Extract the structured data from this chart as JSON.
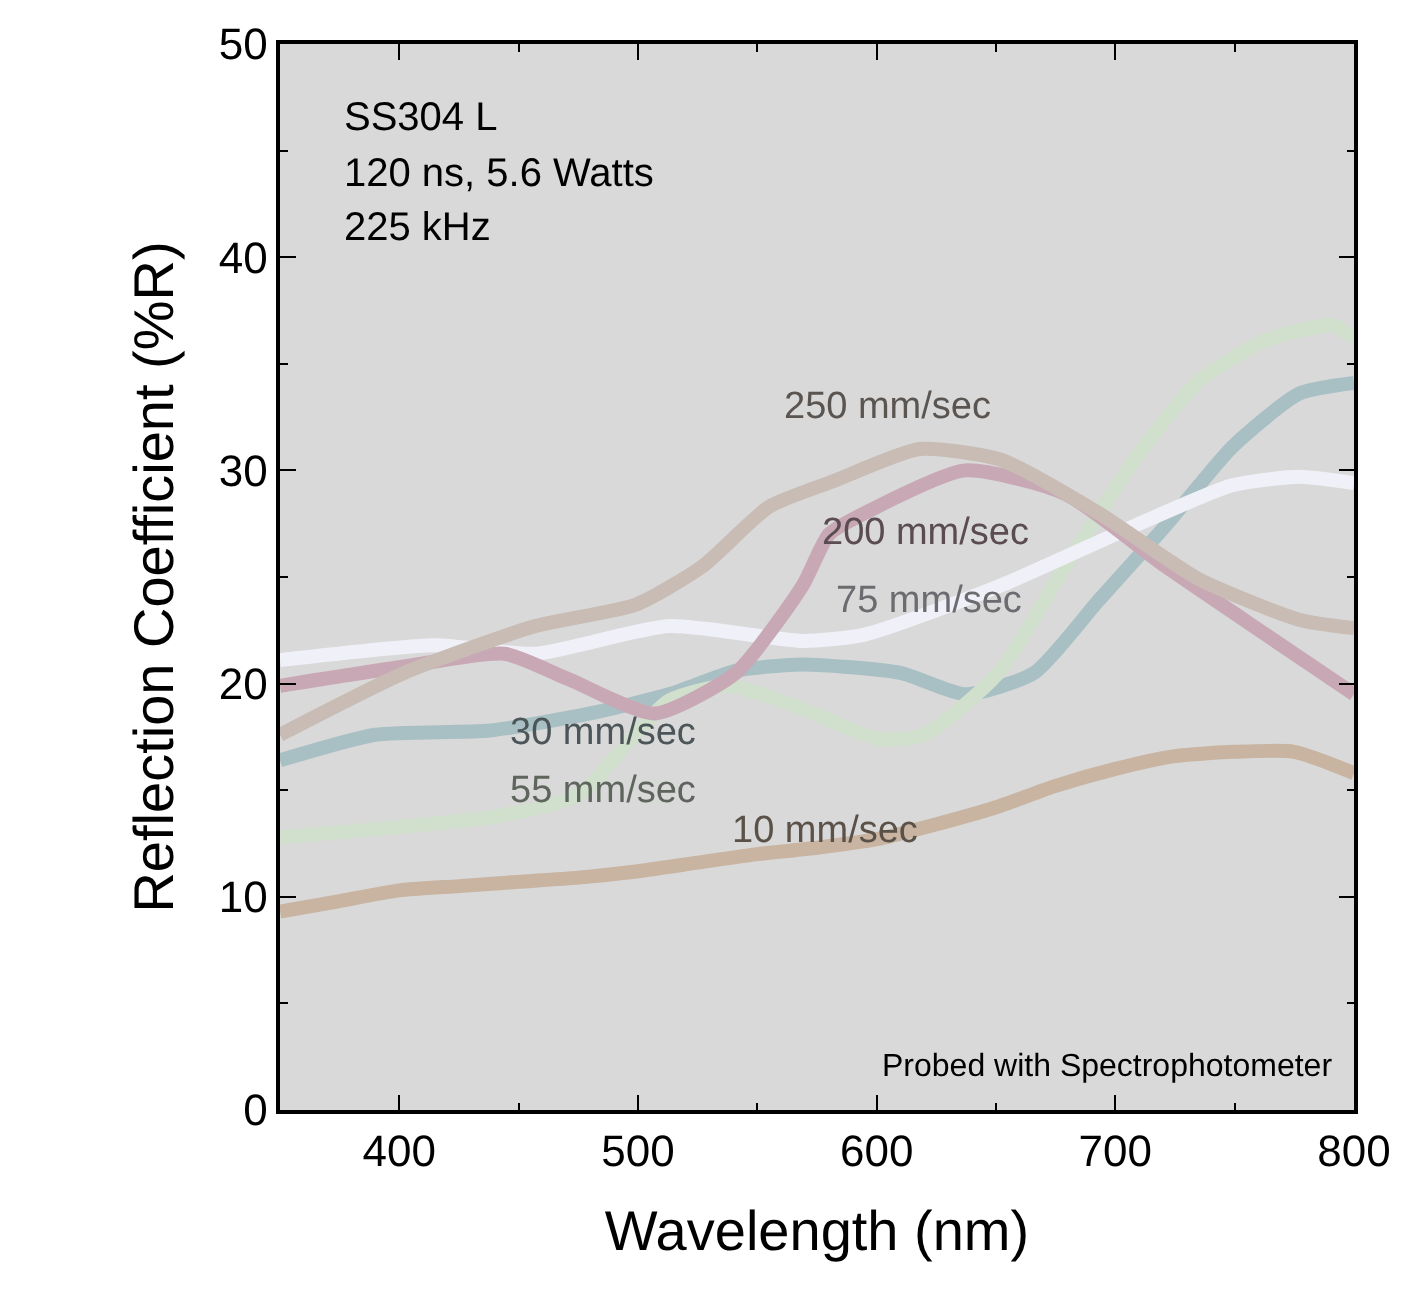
{
  "chart_data": {
    "type": "line",
    "xlabel": "Wavelength (nm)",
    "ylabel": "Reflection Coefficient (%R)",
    "xlim": [
      350,
      800
    ],
    "xticks": [
      400,
      500,
      600,
      700,
      800
    ],
    "ylim": [
      0,
      50
    ],
    "yticks": [
      0,
      10,
      20,
      30,
      40,
      50
    ],
    "grid": false,
    "legend": false,
    "marker": "none",
    "line_style": "solid",
    "annotations": [
      "SS304 L",
      "120 ns, 5.6 Watts",
      "225 kHz",
      "Probed with Spectrophotometer"
    ],
    "series": [
      {
        "name": "10 mm/sec",
        "color": "#c8b4a0",
        "x": [
          350,
          375,
          400,
          425,
          450,
          475,
          500,
          525,
          550,
          575,
          600,
          625,
          650,
          675,
          700,
          725,
          750,
          775,
          800
        ],
        "values": [
          9.3,
          9.8,
          10.3,
          10.5,
          10.7,
          10.9,
          11.2,
          11.6,
          12.0,
          12.3,
          12.7,
          13.4,
          14.2,
          15.2,
          16.0,
          16.6,
          16.8,
          16.8,
          15.8
        ]
      },
      {
        "name": "30 mm/sec",
        "color": "#a8c0c4",
        "x": [
          350,
          390,
          438,
          480,
          513,
          541,
          569,
          610,
          637,
          666,
          693,
          721,
          749,
          777,
          800
        ],
        "values": [
          16.4,
          17.6,
          17.8,
          18.6,
          19.5,
          20.6,
          20.9,
          20.5,
          19.5,
          20.5,
          23.9,
          27.4,
          31.1,
          33.6,
          34.1
        ]
      },
      {
        "name": "55 mm/sec",
        "color": "#d0e0cc",
        "x": [
          350,
          442,
          475,
          513,
          538,
          567,
          601,
          620,
          651,
          679,
          708,
          735,
          763,
          791,
          800
        ],
        "values": [
          12.8,
          13.8,
          14.8,
          19.2,
          19.9,
          18.9,
          17.4,
          17.6,
          20.5,
          25.5,
          30.5,
          34.2,
          36.1,
          36.8,
          36.2
        ]
      },
      {
        "name": "75 mm/sec",
        "color": "#f0f0f8",
        "x": [
          350,
          415,
          457,
          513,
          569,
          595,
          652,
          708,
          749,
          777,
          800
        ],
        "values": [
          21.1,
          21.8,
          21.4,
          22.7,
          22.0,
          22.3,
          24.6,
          27.4,
          29.3,
          29.7,
          29.4
        ]
      },
      {
        "name": "200 mm/sec",
        "color": "#c8a8b4",
        "x": [
          350,
          402,
          444,
          471,
          507,
          541,
          569,
          580,
          595,
          637,
          679,
          721,
          763,
          800
        ],
        "values": [
          19.9,
          20.8,
          21.4,
          20.2,
          18.6,
          20.5,
          24.6,
          27.0,
          28.0,
          30.0,
          28.9,
          25.5,
          22.3,
          19.5
        ]
      },
      {
        "name": "250 mm/sec",
        "color": "#c8bcb4",
        "x": [
          350,
          402,
          457,
          499,
          527,
          555,
          582,
          618,
          652,
          693,
          735,
          777,
          800
        ],
        "values": [
          17.6,
          20.5,
          22.7,
          23.7,
          25.5,
          28.3,
          29.5,
          31.0,
          30.5,
          28.0,
          24.9,
          23.0,
          22.6
        ]
      }
    ]
  }
}
